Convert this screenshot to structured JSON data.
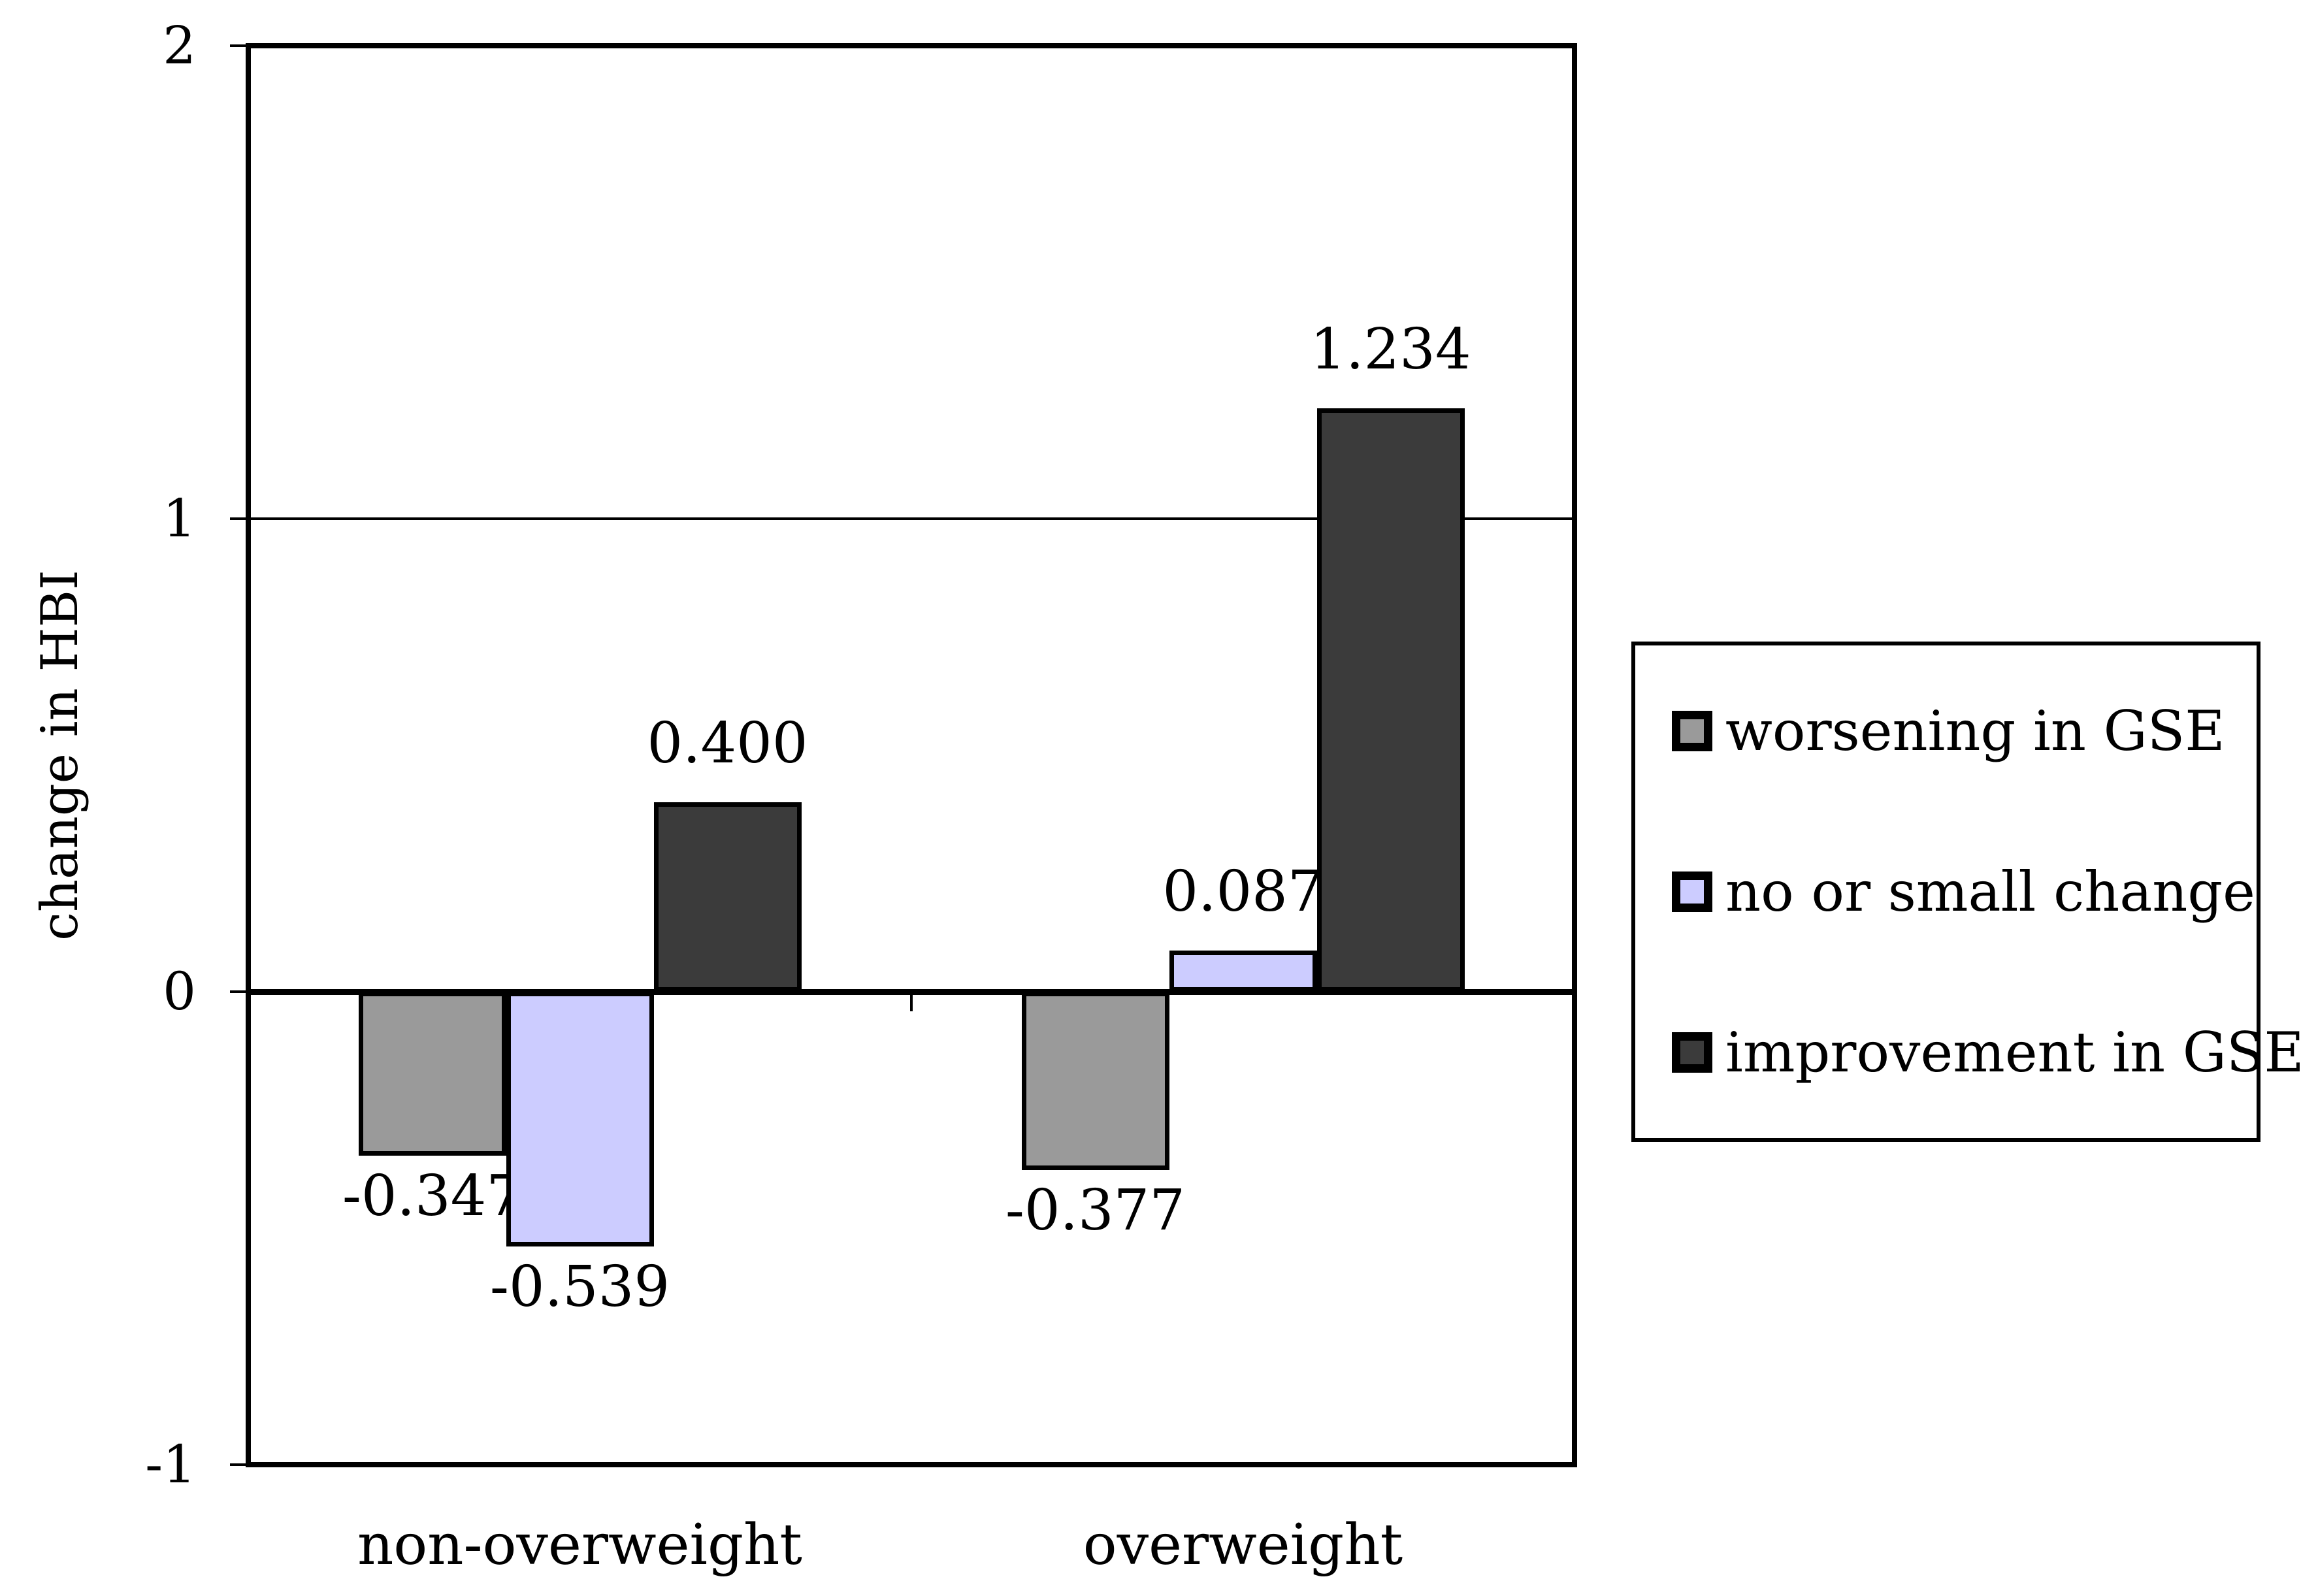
{
  "chart_data": {
    "type": "bar",
    "title": "",
    "ylabel": "change in HBI",
    "xlabel": "",
    "categories": [
      "non-overweight",
      "overweight"
    ],
    "series": [
      {
        "name": "worsening in GSE",
        "color": "#9A9A9A",
        "values": [
          -0.347,
          -0.377
        ],
        "labels": [
          "-0.347",
          "-0.377"
        ]
      },
      {
        "name": "no or small change",
        "color": "#CCCCFF",
        "values": [
          -0.539,
          0.087
        ],
        "labels": [
          "-0.539",
          "0.087"
        ]
      },
      {
        "name": "improvement in GSE",
        "color": "#3B3B3B",
        "values": [
          0.4,
          1.234
        ],
        "labels": [
          "0.400",
          "1.234"
        ]
      }
    ],
    "ylim": [
      -1,
      2
    ],
    "yticks": [
      2,
      1,
      0,
      -1
    ],
    "ytick_labels": [
      "2",
      "1",
      "0",
      "-1"
    ],
    "grid": "horizontal major gridlines at integer values",
    "legend_position": "right",
    "bar_outline_color": "#000000",
    "background_color": "#ffffff"
  }
}
